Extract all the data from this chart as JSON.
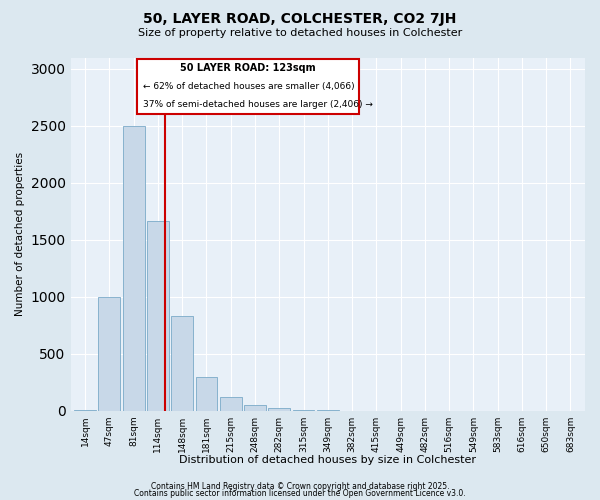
{
  "title": "50, LAYER ROAD, COLCHESTER, CO2 7JH",
  "subtitle": "Size of property relative to detached houses in Colchester",
  "xlabel": "Distribution of detached houses by size in Colchester",
  "ylabel": "Number of detached properties",
  "bin_labels": [
    "14sqm",
    "47sqm",
    "81sqm",
    "114sqm",
    "148sqm",
    "181sqm",
    "215sqm",
    "248sqm",
    "282sqm",
    "315sqm",
    "349sqm",
    "382sqm",
    "415sqm",
    "449sqm",
    "482sqm",
    "516sqm",
    "549sqm",
    "583sqm",
    "616sqm",
    "650sqm",
    "683sqm"
  ],
  "bar_heights": [
    5,
    1000,
    2500,
    1670,
    830,
    300,
    120,
    50,
    30,
    10,
    5,
    0,
    0,
    0,
    0,
    0,
    0,
    0,
    0,
    0,
    0
  ],
  "bar_color": "#c8d8e8",
  "bar_edge_color": "#7aaac8",
  "marker_value_index": 3.3,
  "marker_label": "50 LAYER ROAD: 123sqm",
  "annotation_line1": "← 62% of detached houses are smaller (4,066)",
  "annotation_line2": "37% of semi-detached houses are larger (2,406) →",
  "vline_color": "#cc0000",
  "annotation_box_color": "#cc0000",
  "ylim": [
    0,
    3100
  ],
  "yticks": [
    0,
    500,
    1000,
    1500,
    2000,
    2500,
    3000
  ],
  "footer1": "Contains HM Land Registry data © Crown copyright and database right 2025.",
  "footer2": "Contains public sector information licensed under the Open Government Licence v3.0.",
  "bg_color": "#dce8f0",
  "plot_bg_color": "#e8f0f8"
}
